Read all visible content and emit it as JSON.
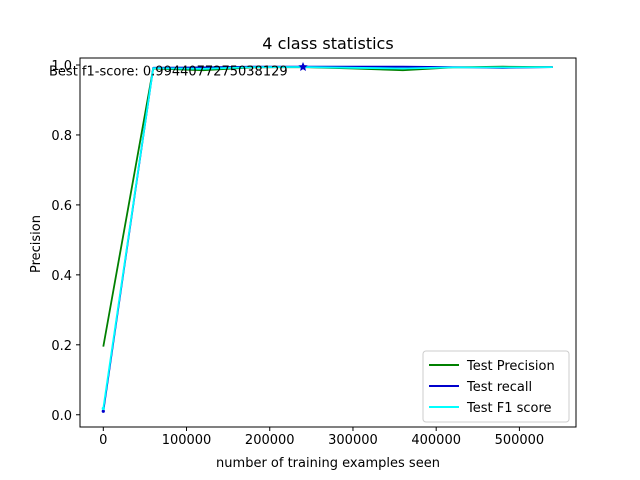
{
  "chart_data": {
    "type": "line",
    "title": "4 class statistics",
    "xlabel": "number of training examples seen",
    "ylabel": "Precision",
    "xlim": [
      -28000,
      568000
    ],
    "ylim": [
      -0.035,
      1.02
    ],
    "x_ticks": [
      0,
      100000,
      200000,
      300000,
      400000,
      500000
    ],
    "x_tick_labels": [
      "0",
      "100000",
      "200000",
      "300000",
      "400000",
      "500000"
    ],
    "y_ticks": [
      0.0,
      0.2,
      0.4,
      0.6,
      0.8,
      1.0
    ],
    "y_tick_labels": [
      "0.0",
      "0.2",
      "0.4",
      "0.6",
      "0.8",
      "1.0"
    ],
    "grid": false,
    "legend_position": "lower-right",
    "x": [
      0,
      60000,
      120000,
      180000,
      240000,
      300000,
      360000,
      420000,
      480000,
      540000
    ],
    "series": [
      {
        "name": "Test Precision",
        "color": "#008000",
        "values": [
          0.195,
          0.99,
          0.985,
          0.993,
          0.994,
          0.99,
          0.985,
          0.993,
          0.995,
          0.994
        ]
      },
      {
        "name": "Test recall",
        "color": "#0000cc",
        "values": [
          0.01,
          0.992,
          0.993,
          0.995,
          0.995,
          0.995,
          0.995,
          0.994,
          0.992,
          0.994
        ]
      },
      {
        "name": "Test F1 score",
        "color": "#00ffff",
        "values": [
          0.018,
          0.991,
          0.989,
          0.994,
          0.9944,
          0.992,
          0.99,
          0.993,
          0.993,
          0.994
        ]
      }
    ],
    "best_point": {
      "x": 240000,
      "y": 0.9944077275038129,
      "color": "#0000cc"
    },
    "annotation": "Best f1-score: 0.9944077275038129"
  }
}
